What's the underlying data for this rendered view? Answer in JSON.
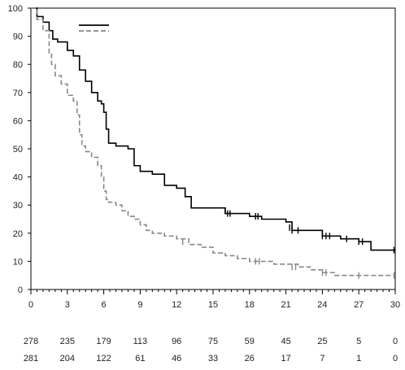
{
  "chart_data": {
    "type": "line",
    "chart_kind": "kaplan-meier",
    "x_ticks": [
      0,
      3,
      6,
      9,
      12,
      15,
      18,
      21,
      24,
      27,
      30
    ],
    "y_ticks": [
      0,
      10,
      20,
      30,
      40,
      50,
      60,
      70,
      80,
      90,
      100
    ],
    "xlim": [
      0,
      30
    ],
    "ylim": [
      0,
      100
    ],
    "grid": false,
    "legend_position": "top-left",
    "series": [
      {
        "line_style": "solid",
        "color": "#000000",
        "x": [
          0,
          0.5,
          1.0,
          1.5,
          1.8,
          2.2,
          3.0,
          3.5,
          4.0,
          4.5,
          5.0,
          5.5,
          5.8,
          6.0,
          6.2,
          6.4,
          7.0,
          8.0,
          8.5,
          9.0,
          10.0,
          11.0,
          12.0,
          12.7,
          13.2,
          16.0,
          18.0,
          19.0,
          21.0,
          21.5,
          24.0,
          25.5,
          27.0,
          28.0,
          30.0
        ],
        "y": [
          100,
          97,
          95,
          92,
          89,
          88,
          85,
          83,
          78,
          74,
          70,
          67,
          66,
          63,
          57,
          52,
          51,
          50,
          44,
          42,
          41,
          37,
          36,
          33,
          29,
          27,
          26,
          25,
          24,
          21,
          19,
          18,
          17,
          14,
          14
        ],
        "censor_x": [
          16.0,
          16.2,
          16.4,
          18.5,
          18.7,
          21.3,
          21.5,
          22.0,
          24.0,
          24.3,
          24.6,
          26.0,
          27.0,
          27.3,
          29.9
        ],
        "censor_y": [
          28,
          27,
          27,
          26,
          26,
          22,
          21,
          21,
          19,
          19,
          19,
          18,
          17,
          17,
          14
        ]
      },
      {
        "line_style": "dashed",
        "color": "#888888",
        "x": [
          0,
          0.5,
          1.0,
          1.5,
          1.7,
          2.0,
          2.5,
          3.0,
          3.5,
          3.8,
          4.0,
          4.2,
          4.5,
          5.0,
          5.5,
          5.8,
          6.0,
          6.2,
          6.4,
          7.0,
          7.5,
          8.0,
          8.5,
          9.0,
          9.5,
          10.0,
          11.0,
          12.0,
          13.0,
          14.0,
          15.0,
          16.0,
          17.0,
          18.0,
          19.0,
          20.0,
          21.0,
          22.0,
          23.0,
          24.0,
          25.0,
          30.0
        ],
        "y": [
          100,
          96,
          92,
          84,
          80,
          76,
          73,
          69,
          67,
          62,
          55,
          51,
          49,
          47,
          44,
          40,
          35,
          32,
          31,
          30,
          28,
          26,
          25,
          23,
          21,
          20,
          19,
          18,
          16,
          15,
          13,
          12,
          11,
          10,
          10,
          9,
          9,
          8,
          7,
          6,
          5,
          5
        ],
        "censor_x": [
          12.5,
          18.5,
          18.8,
          21.5,
          21.8,
          24.0,
          24.3,
          27.0,
          29.9
        ],
        "censor_y": [
          17,
          10,
          10,
          8,
          8,
          6,
          6,
          5,
          5
        ]
      }
    ],
    "at_risk": {
      "x": [
        0,
        3,
        6,
        9,
        12,
        15,
        18,
        21,
        24,
        27,
        30
      ],
      "rows": [
        [
          "278",
          "235",
          "179",
          "113",
          "96",
          "75",
          "59",
          "45",
          "25",
          "5",
          "0"
        ],
        [
          "281",
          "204",
          "122",
          "61",
          "46",
          "33",
          "26",
          "17",
          "7",
          "1",
          "0"
        ]
      ]
    }
  }
}
